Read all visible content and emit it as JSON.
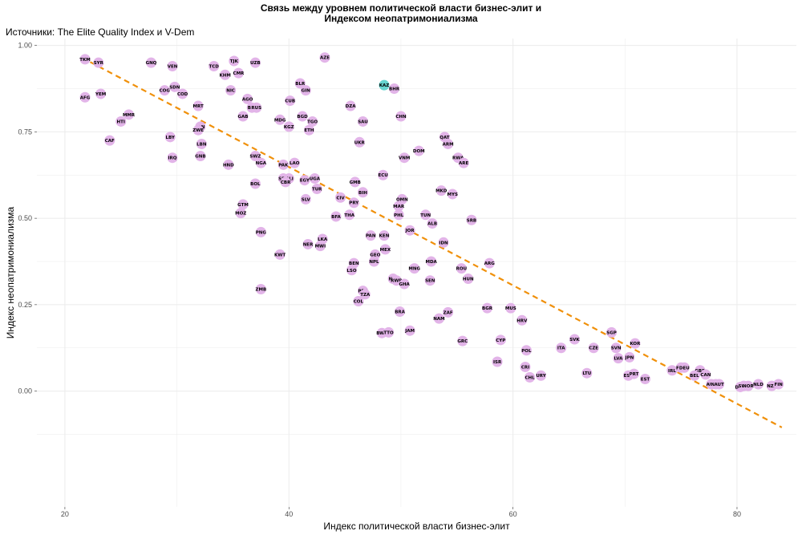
{
  "chart_data": {
    "type": "scatter",
    "title_lines": [
      "Связь между уровнем политической власти бизнес-элит и",
      "Индексом неопатримониализма"
    ],
    "subtitle": "Источники: The Elite Quality Index и V-Dem",
    "xlabel": "Индекс политической власти бизнес-элит",
    "ylabel": "Индекс неопатримониализма",
    "xlim": [
      17.5,
      85.3
    ],
    "ylim": [
      -0.335,
      1.02
    ],
    "x_ticks": [
      20,
      40,
      60,
      80
    ],
    "y_ticks": [
      0.0,
      0.25,
      0.5,
      0.75,
      1.0
    ],
    "y_tick_labels": [
      "0.00",
      "0.25",
      "0.50",
      "0.75",
      "1.00"
    ],
    "grid": true,
    "colors": {
      "point": "#e2b4e8",
      "highlight": "#66d6d0",
      "trend": "#f0900a",
      "grid": "#ebebeb"
    },
    "trendline": {
      "style": "dashed",
      "x": [
        21.5,
        84.0
      ],
      "y": [
        0.965,
        -0.105
      ]
    },
    "points": [
      {
        "label": "TKM",
        "x": 21.8,
        "y": 0.96
      },
      {
        "label": "SYR",
        "x": 23.0,
        "y": 0.95
      },
      {
        "label": "AFG",
        "x": 21.8,
        "y": 0.85
      },
      {
        "label": "YEM",
        "x": 23.2,
        "y": 0.86
      },
      {
        "label": "CAF",
        "x": 24.0,
        "y": 0.725
      },
      {
        "label": "HTI",
        "x": 25.0,
        "y": 0.78
      },
      {
        "label": "MMR",
        "x": 25.7,
        "y": 0.8
      },
      {
        "label": "GNQ",
        "x": 27.7,
        "y": 0.95
      },
      {
        "label": "VEN",
        "x": 29.6,
        "y": 0.94
      },
      {
        "label": "COG",
        "x": 28.9,
        "y": 0.87
      },
      {
        "label": "SDN",
        "x": 29.8,
        "y": 0.88
      },
      {
        "label": "COD",
        "x": 30.5,
        "y": 0.86
      },
      {
        "label": "LBY",
        "x": 29.4,
        "y": 0.735
      },
      {
        "label": "IRQ",
        "x": 29.6,
        "y": 0.675
      },
      {
        "label": "MRT",
        "x": 31.9,
        "y": 0.825
      },
      {
        "label": "IRN",
        "x": 32.1,
        "y": 0.765
      },
      {
        "label": "ZWE",
        "x": 31.9,
        "y": 0.755
      },
      {
        "label": "LBN",
        "x": 32.2,
        "y": 0.715
      },
      {
        "label": "GNB",
        "x": 32.1,
        "y": 0.68
      },
      {
        "label": "TCD",
        "x": 33.3,
        "y": 0.94
      },
      {
        "label": "TJK",
        "x": 35.1,
        "y": 0.955
      },
      {
        "label": "KHM",
        "x": 34.3,
        "y": 0.915
      },
      {
        "label": "CMR",
        "x": 35.5,
        "y": 0.92
      },
      {
        "label": "UZB",
        "x": 37.0,
        "y": 0.95
      },
      {
        "label": "NIC",
        "x": 34.8,
        "y": 0.87
      },
      {
        "label": "AGO",
        "x": 36.3,
        "y": 0.845
      },
      {
        "label": "BDI",
        "x": 36.7,
        "y": 0.82
      },
      {
        "label": "RUS",
        "x": 37.1,
        "y": 0.82
      },
      {
        "label": "GAB",
        "x": 35.9,
        "y": 0.795
      },
      {
        "label": "SWZ",
        "x": 37.0,
        "y": 0.68
      },
      {
        "label": "HND",
        "x": 34.6,
        "y": 0.655
      },
      {
        "label": "NGA",
        "x": 37.5,
        "y": 0.66
      },
      {
        "label": "BOL",
        "x": 37.0,
        "y": 0.6
      },
      {
        "label": "GTM",
        "x": 35.9,
        "y": 0.54
      },
      {
        "label": "MOZ",
        "x": 35.7,
        "y": 0.515
      },
      {
        "label": "PNG",
        "x": 37.5,
        "y": 0.46
      },
      {
        "label": "KWT",
        "x": 39.2,
        "y": 0.395
      },
      {
        "label": "ZMB",
        "x": 37.5,
        "y": 0.295
      },
      {
        "label": "BLR",
        "x": 41.0,
        "y": 0.89
      },
      {
        "label": "GIN",
        "x": 41.5,
        "y": 0.87
      },
      {
        "label": "CUB",
        "x": 40.1,
        "y": 0.84
      },
      {
        "label": "MDG",
        "x": 39.2,
        "y": 0.785
      },
      {
        "label": "BGD",
        "x": 41.2,
        "y": 0.795
      },
      {
        "label": "TGO",
        "x": 42.1,
        "y": 0.78
      },
      {
        "label": "KGZ",
        "x": 40.0,
        "y": 0.765
      },
      {
        "label": "ETH",
        "x": 41.8,
        "y": 0.755
      },
      {
        "label": "LAO",
        "x": 40.5,
        "y": 0.66
      },
      {
        "label": "PAK",
        "x": 39.5,
        "y": 0.655
      },
      {
        "label": "MLI",
        "x": 40.0,
        "y": 0.615
      },
      {
        "label": "SEN",
        "x": 39.5,
        "y": 0.615
      },
      {
        "label": "CBR",
        "x": 39.7,
        "y": 0.605
      },
      {
        "label": "EGY",
        "x": 41.4,
        "y": 0.61
      },
      {
        "label": "UGA",
        "x": 42.3,
        "y": 0.615
      },
      {
        "label": "TUR",
        "x": 42.5,
        "y": 0.585
      },
      {
        "label": "SLV",
        "x": 41.5,
        "y": 0.555
      },
      {
        "label": "LKA",
        "x": 43.0,
        "y": 0.44
      },
      {
        "label": "NER",
        "x": 41.7,
        "y": 0.425
      },
      {
        "label": "MWI",
        "x": 42.8,
        "y": 0.42
      },
      {
        "label": "AZE",
        "x": 43.2,
        "y": 0.965
      },
      {
        "label": "DZA",
        "x": 45.5,
        "y": 0.825
      },
      {
        "label": "SAU",
        "x": 46.6,
        "y": 0.78
      },
      {
        "label": "UKR",
        "x": 46.3,
        "y": 0.72
      },
      {
        "label": "GMB",
        "x": 45.9,
        "y": 0.605
      },
      {
        "label": "BIH",
        "x": 46.6,
        "y": 0.575
      },
      {
        "label": "CIV",
        "x": 44.6,
        "y": 0.56
      },
      {
        "label": "PRY",
        "x": 45.8,
        "y": 0.545
      },
      {
        "label": "BFA",
        "x": 44.2,
        "y": 0.505
      },
      {
        "label": "THA",
        "x": 45.4,
        "y": 0.51
      },
      {
        "label": "ECU",
        "x": 48.4,
        "y": 0.625
      },
      {
        "label": "KAZ",
        "x": 48.5,
        "y": 0.885,
        "highlight": true
      },
      {
        "label": "BHR",
        "x": 49.4,
        "y": 0.875
      },
      {
        "label": "CHN",
        "x": 50.0,
        "y": 0.795
      },
      {
        "label": "VNM",
        "x": 50.3,
        "y": 0.675
      },
      {
        "label": "DOM",
        "x": 51.6,
        "y": 0.695
      },
      {
        "label": "OMN",
        "x": 50.1,
        "y": 0.555
      },
      {
        "label": "MAR",
        "x": 49.8,
        "y": 0.535
      },
      {
        "label": "PHL",
        "x": 49.8,
        "y": 0.51
      },
      {
        "label": "TUN",
        "x": 52.2,
        "y": 0.51
      },
      {
        "label": "ALB",
        "x": 52.8,
        "y": 0.485
      },
      {
        "label": "JOR",
        "x": 50.8,
        "y": 0.465
      },
      {
        "label": "PAN",
        "x": 47.3,
        "y": 0.45
      },
      {
        "label": "KEN",
        "x": 48.5,
        "y": 0.45
      },
      {
        "label": "GEO",
        "x": 47.7,
        "y": 0.395
      },
      {
        "label": "MEX",
        "x": 48.6,
        "y": 0.41
      },
      {
        "label": "NPL",
        "x": 47.6,
        "y": 0.375
      },
      {
        "label": "BEN",
        "x": 45.8,
        "y": 0.37
      },
      {
        "label": "LSO",
        "x": 45.6,
        "y": 0.35
      },
      {
        "label": "MNG",
        "x": 51.2,
        "y": 0.355
      },
      {
        "label": "MDA",
        "x": 52.7,
        "y": 0.375
      },
      {
        "label": "IDN",
        "x": 53.8,
        "y": 0.43
      },
      {
        "label": "NIG",
        "x": 49.3,
        "y": 0.325
      },
      {
        "label": "RWB",
        "x": 49.6,
        "y": 0.32
      },
      {
        "label": "GHA",
        "x": 50.3,
        "y": 0.31
      },
      {
        "label": "SEN",
        "x": 52.6,
        "y": 0.32
      },
      {
        "label": "PER",
        "x": 46.6,
        "y": 0.29
      },
      {
        "label": "TZA",
        "x": 46.8,
        "y": 0.28
      },
      {
        "label": "COL",
        "x": 46.2,
        "y": 0.26
      },
      {
        "label": "BRA",
        "x": 49.9,
        "y": 0.23
      },
      {
        "label": "ZAF",
        "x": 54.2,
        "y": 0.228
      },
      {
        "label": "NAM",
        "x": 53.4,
        "y": 0.21
      },
      {
        "label": "BWA",
        "x": 48.3,
        "y": 0.168
      },
      {
        "label": "TTO",
        "x": 48.9,
        "y": 0.17
      },
      {
        "label": "JAM",
        "x": 50.8,
        "y": 0.175
      },
      {
        "label": "QAT",
        "x": 53.9,
        "y": 0.735
      },
      {
        "label": "ARM",
        "x": 54.2,
        "y": 0.715
      },
      {
        "label": "RWA",
        "x": 55.1,
        "y": 0.675
      },
      {
        "label": "ARE",
        "x": 55.6,
        "y": 0.66
      },
      {
        "label": "MKD",
        "x": 53.6,
        "y": 0.58
      },
      {
        "label": "MYS",
        "x": 54.6,
        "y": 0.57
      },
      {
        "label": "SRB",
        "x": 56.3,
        "y": 0.495
      },
      {
        "label": "ROU",
        "x": 55.4,
        "y": 0.355
      },
      {
        "label": "HUN",
        "x": 56.0,
        "y": 0.325
      },
      {
        "label": "ARG",
        "x": 57.9,
        "y": 0.37
      },
      {
        "label": "BGR",
        "x": 57.7,
        "y": 0.24
      },
      {
        "label": "MUS",
        "x": 59.8,
        "y": 0.24
      },
      {
        "label": "HRV",
        "x": 60.8,
        "y": 0.205
      },
      {
        "label": "GRC",
        "x": 55.5,
        "y": 0.145
      },
      {
        "label": "CYP",
        "x": 58.9,
        "y": 0.148
      },
      {
        "label": "ISR",
        "x": 58.6,
        "y": 0.085
      },
      {
        "label": "POL",
        "x": 61.2,
        "y": 0.118
      },
      {
        "label": "CRI",
        "x": 61.1,
        "y": 0.07
      },
      {
        "label": "CHL",
        "x": 61.5,
        "y": 0.04
      },
      {
        "label": "URY",
        "x": 62.5,
        "y": 0.045
      },
      {
        "label": "ITA",
        "x": 64.3,
        "y": 0.125
      },
      {
        "label": "SVK",
        "x": 65.5,
        "y": 0.15
      },
      {
        "label": "LTU",
        "x": 66.6,
        "y": 0.052
      },
      {
        "label": "CZE",
        "x": 67.2,
        "y": 0.125
      },
      {
        "label": "SGP",
        "x": 68.8,
        "y": 0.17
      },
      {
        "label": "SVN",
        "x": 69.2,
        "y": 0.125
      },
      {
        "label": "LVA",
        "x": 69.4,
        "y": 0.095
      },
      {
        "label": "KOR",
        "x": 70.9,
        "y": 0.138
      },
      {
        "label": "JPN",
        "x": 70.4,
        "y": 0.098
      },
      {
        "label": "ESP",
        "x": 70.3,
        "y": 0.045
      },
      {
        "label": "PRT",
        "x": 70.8,
        "y": 0.05
      },
      {
        "label": "EST",
        "x": 71.8,
        "y": 0.035
      },
      {
        "label": "IRL",
        "x": 74.2,
        "y": 0.06
      },
      {
        "label": "FRA",
        "x": 75.0,
        "y": 0.068
      },
      {
        "label": "DEU",
        "x": 75.3,
        "y": 0.068
      },
      {
        "label": "GBR",
        "x": 76.7,
        "y": 0.06
      },
      {
        "label": "CAN",
        "x": 77.2,
        "y": 0.048
      },
      {
        "label": "BEL",
        "x": 76.2,
        "y": 0.045
      },
      {
        "label": "AUS",
        "x": 77.7,
        "y": 0.02
      },
      {
        "label": "NZL",
        "x": 78.1,
        "y": 0.02
      },
      {
        "label": "AUT",
        "x": 78.4,
        "y": 0.02
      },
      {
        "label": "DNK",
        "x": 80.3,
        "y": 0.012
      },
      {
        "label": "SWE",
        "x": 80.6,
        "y": 0.015
      },
      {
        "label": "NOR",
        "x": 81.0,
        "y": 0.015
      },
      {
        "label": "NLD",
        "x": 81.9,
        "y": 0.02
      },
      {
        "label": "NZL",
        "x": 83.1,
        "y": 0.015
      },
      {
        "label": "FIN",
        "x": 83.7,
        "y": 0.02
      }
    ]
  }
}
